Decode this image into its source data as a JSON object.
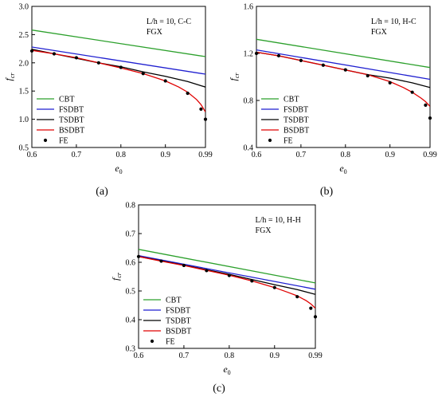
{
  "figure": {
    "captions": [
      "(a)",
      "(b)",
      "(c)"
    ]
  },
  "chart_data": [
    {
      "type": "line",
      "panel": "a",
      "annotation": [
        "L/h = 10, C-C",
        "FGX"
      ],
      "xlabel": "e0",
      "ylabel": "fcr",
      "xlim": [
        0.6,
        0.99
      ],
      "ylim": [
        0.5,
        3.0
      ],
      "xticks": [
        "0.6",
        "0.7",
        "0.8",
        "0.9",
        "0.99"
      ],
      "yticks": [
        "0.5",
        "1.0",
        "1.5",
        "2.0",
        "2.5",
        "3.0"
      ],
      "legend_position": "bottom-left",
      "series": [
        {
          "name": "CBT",
          "color": "#2ca02c",
          "style": "line",
          "x": [
            0.6,
            0.99
          ],
          "y": [
            2.58,
            2.11
          ]
        },
        {
          "name": "FSDBT",
          "color": "#1f1fd0",
          "style": "line",
          "x": [
            0.6,
            0.99
          ],
          "y": [
            2.28,
            1.8
          ]
        },
        {
          "name": "TSDBT",
          "color": "#000000",
          "style": "line",
          "x": [
            0.6,
            0.65,
            0.7,
            0.75,
            0.8,
            0.85,
            0.9,
            0.95,
            0.99
          ],
          "y": [
            2.24,
            2.16,
            2.08,
            2.0,
            1.93,
            1.84,
            1.76,
            1.67,
            1.57
          ]
        },
        {
          "name": "BSDBT",
          "color": "#e00000",
          "style": "line",
          "x": [
            0.6,
            0.65,
            0.7,
            0.75,
            0.8,
            0.85,
            0.9,
            0.93,
            0.95,
            0.97,
            0.98,
            0.99
          ],
          "y": [
            2.22,
            2.16,
            2.09,
            2.0,
            1.91,
            1.81,
            1.68,
            1.57,
            1.48,
            1.35,
            1.26,
            1.13
          ]
        },
        {
          "name": "FE",
          "color": "#000000",
          "style": "scatter",
          "x": [
            0.6,
            0.65,
            0.7,
            0.75,
            0.8,
            0.85,
            0.9,
            0.95,
            0.98,
            0.99
          ],
          "y": [
            2.21,
            2.16,
            2.09,
            2.0,
            1.92,
            1.81,
            1.68,
            1.46,
            1.18,
            1.0
          ]
        }
      ]
    },
    {
      "type": "line",
      "panel": "b",
      "annotation": [
        "L/h = 10, H-C",
        "FGX"
      ],
      "xlabel": "e0",
      "ylabel": "fcr",
      "xlim": [
        0.6,
        0.99
      ],
      "ylim": [
        0.4,
        1.6
      ],
      "xticks": [
        "0.6",
        "0.7",
        "0.8",
        "0.9",
        "0.99"
      ],
      "yticks": [
        "0.4",
        "0.8",
        "1.2",
        "1.6"
      ],
      "legend_position": "bottom-left",
      "series": [
        {
          "name": "CBT",
          "color": "#2ca02c",
          "style": "line",
          "x": [
            0.6,
            0.99
          ],
          "y": [
            1.32,
            1.08
          ]
        },
        {
          "name": "FSDBT",
          "color": "#1f1fd0",
          "style": "line",
          "x": [
            0.6,
            0.99
          ],
          "y": [
            1.23,
            0.98
          ]
        },
        {
          "name": "TSDBT",
          "color": "#000000",
          "style": "line",
          "x": [
            0.6,
            0.65,
            0.7,
            0.75,
            0.8,
            0.85,
            0.9,
            0.95,
            0.99
          ],
          "y": [
            1.21,
            1.18,
            1.14,
            1.1,
            1.06,
            1.02,
            0.99,
            0.95,
            0.91
          ]
        },
        {
          "name": "BSDBT",
          "color": "#e00000",
          "style": "line",
          "x": [
            0.6,
            0.65,
            0.7,
            0.75,
            0.8,
            0.85,
            0.9,
            0.93,
            0.95,
            0.97,
            0.98,
            0.99
          ],
          "y": [
            1.21,
            1.18,
            1.14,
            1.1,
            1.06,
            1.02,
            0.96,
            0.91,
            0.87,
            0.82,
            0.79,
            0.75
          ]
        },
        {
          "name": "FE",
          "color": "#000000",
          "style": "scatter",
          "x": [
            0.6,
            0.65,
            0.7,
            0.75,
            0.8,
            0.85,
            0.9,
            0.95,
            0.98,
            0.99
          ],
          "y": [
            1.2,
            1.18,
            1.14,
            1.1,
            1.06,
            1.01,
            0.95,
            0.87,
            0.76,
            0.65
          ]
        }
      ]
    },
    {
      "type": "line",
      "panel": "c",
      "annotation": [
        "L/h = 10, H-H",
        "FGX"
      ],
      "xlabel": "e0",
      "ylabel": "fcr",
      "xlim": [
        0.6,
        0.99
      ],
      "ylim": [
        0.3,
        0.8
      ],
      "xticks": [
        "0.6",
        "0.7",
        "0.8",
        "0.9",
        "0.99"
      ],
      "yticks": [
        "0.3",
        "0.4",
        "0.5",
        "0.6",
        "0.7",
        "0.8"
      ],
      "legend_position": "bottom-left",
      "series": [
        {
          "name": "CBT",
          "color": "#2ca02c",
          "style": "line",
          "x": [
            0.6,
            0.99
          ],
          "y": [
            0.645,
            0.528
          ]
        },
        {
          "name": "FSDBT",
          "color": "#1f1fd0",
          "style": "line",
          "x": [
            0.6,
            0.99
          ],
          "y": [
            0.623,
            0.506
          ]
        },
        {
          "name": "TSDBT",
          "color": "#000000",
          "style": "line",
          "x": [
            0.6,
            0.65,
            0.7,
            0.75,
            0.8,
            0.85,
            0.9,
            0.95,
            0.99
          ],
          "y": [
            0.62,
            0.605,
            0.59,
            0.574,
            0.558,
            0.54,
            0.522,
            0.505,
            0.488
          ]
        },
        {
          "name": "BSDBT",
          "color": "#e00000",
          "style": "line",
          "x": [
            0.6,
            0.65,
            0.7,
            0.75,
            0.8,
            0.85,
            0.9,
            0.93,
            0.95,
            0.97,
            0.98,
            0.99
          ],
          "y": [
            0.62,
            0.604,
            0.589,
            0.572,
            0.555,
            0.535,
            0.512,
            0.495,
            0.483,
            0.466,
            0.455,
            0.44
          ]
        },
        {
          "name": "FE",
          "color": "#000000",
          "style": "scatter",
          "x": [
            0.6,
            0.65,
            0.7,
            0.75,
            0.8,
            0.85,
            0.9,
            0.95,
            0.98,
            0.99
          ],
          "y": [
            0.62,
            0.604,
            0.589,
            0.571,
            0.554,
            0.535,
            0.512,
            0.48,
            0.44,
            0.41
          ]
        }
      ]
    }
  ]
}
